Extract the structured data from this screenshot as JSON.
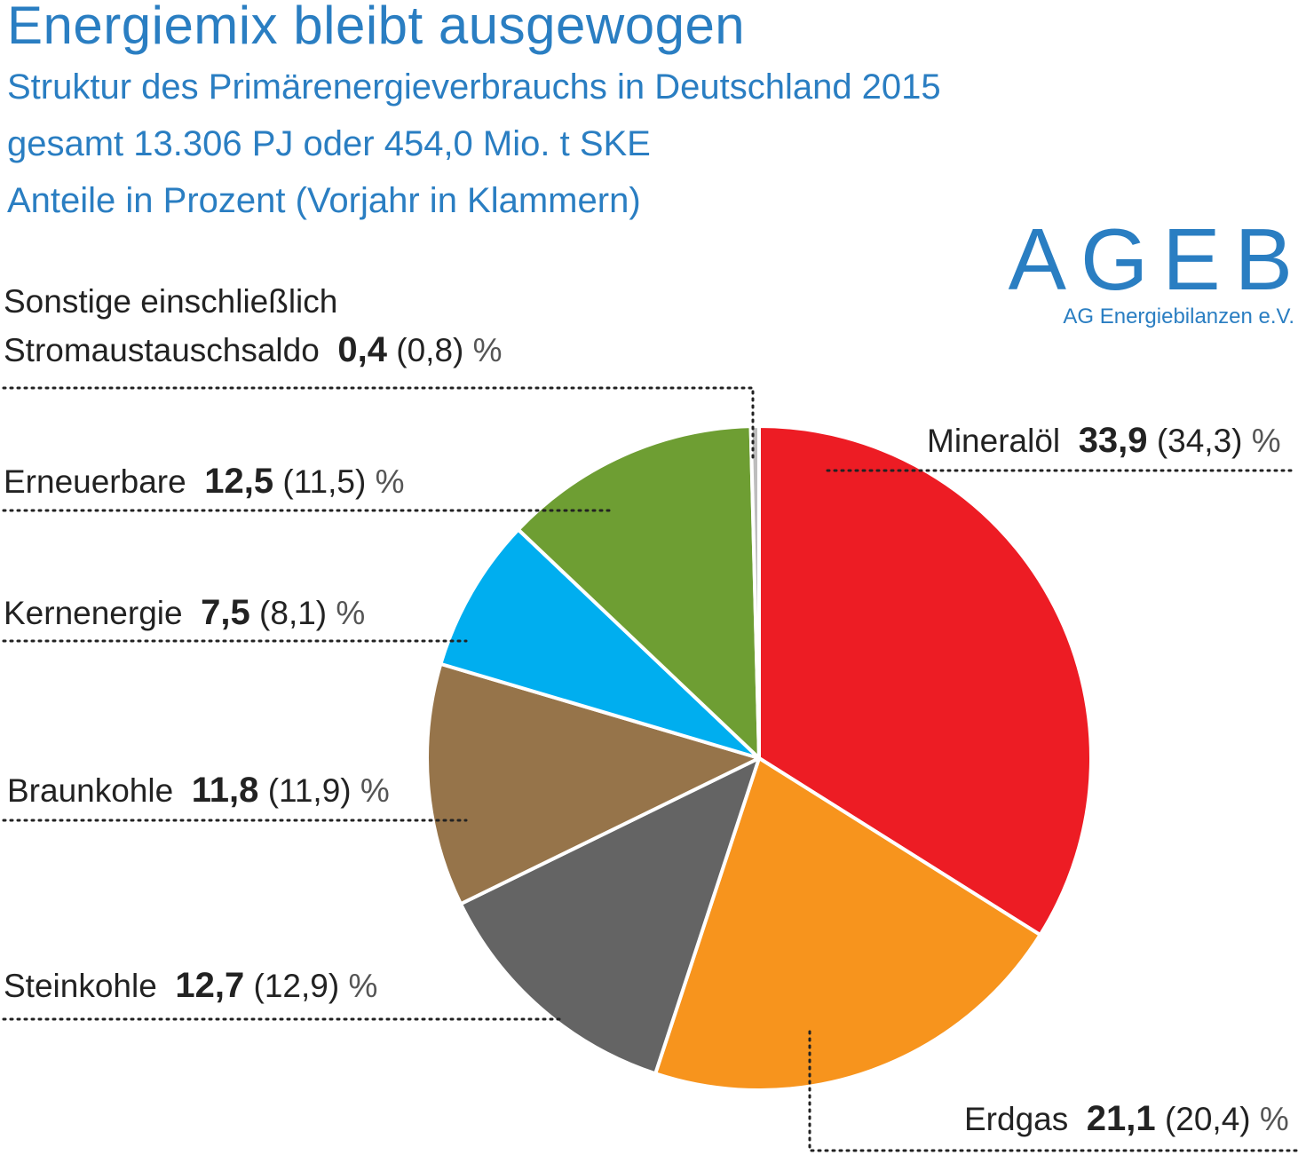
{
  "chart_data": {
    "type": "pie",
    "title": "Energiemix bleibt ausgewogen",
    "subtitle": [
      "Struktur des Primärenergieverbrauchs in Deutschland 2015",
      "gesamt 13.306 PJ oder 454,0 Mio. t SKE",
      "Anteile in Prozent (Vorjahr in Klammern)"
    ],
    "unit": "%",
    "slices": [
      {
        "name": "Mineralöl",
        "value": 33.9,
        "value_label": "33,9",
        "prev_label": "(34,3)",
        "color": "#ed1c24"
      },
      {
        "name": "Erdgas",
        "value": 21.1,
        "value_label": "21,1",
        "prev_label": "(20,4)",
        "color": "#f7941d"
      },
      {
        "name": "Steinkohle",
        "value": 12.7,
        "value_label": "12,7",
        "prev_label": "(12,9)",
        "color": "#646464"
      },
      {
        "name": "Braunkohle",
        "value": 11.8,
        "value_label": "11,8",
        "prev_label": "(11,9)",
        "color": "#96744a"
      },
      {
        "name": "Kernenergie",
        "value": 7.5,
        "value_label": "7,5",
        "prev_label": "(8,1)",
        "color": "#00aeef"
      },
      {
        "name": "Erneuerbare",
        "value": 12.5,
        "value_label": "12,5",
        "prev_label": "(11,5)",
        "color": "#6e9e33"
      },
      {
        "name": "Sonstige einschließlich Stromaustauschsaldo",
        "name_line1": "Sonstige einschließlich",
        "name_line2": "Stromaustauschsaldo",
        "value": 0.4,
        "value_label": "0,4",
        "prev_label": "(0,8)",
        "color": "#bdbdbd"
      }
    ]
  },
  "logo": {
    "mark": "AGEB",
    "name": "AG Energiebilanzen e.V."
  }
}
